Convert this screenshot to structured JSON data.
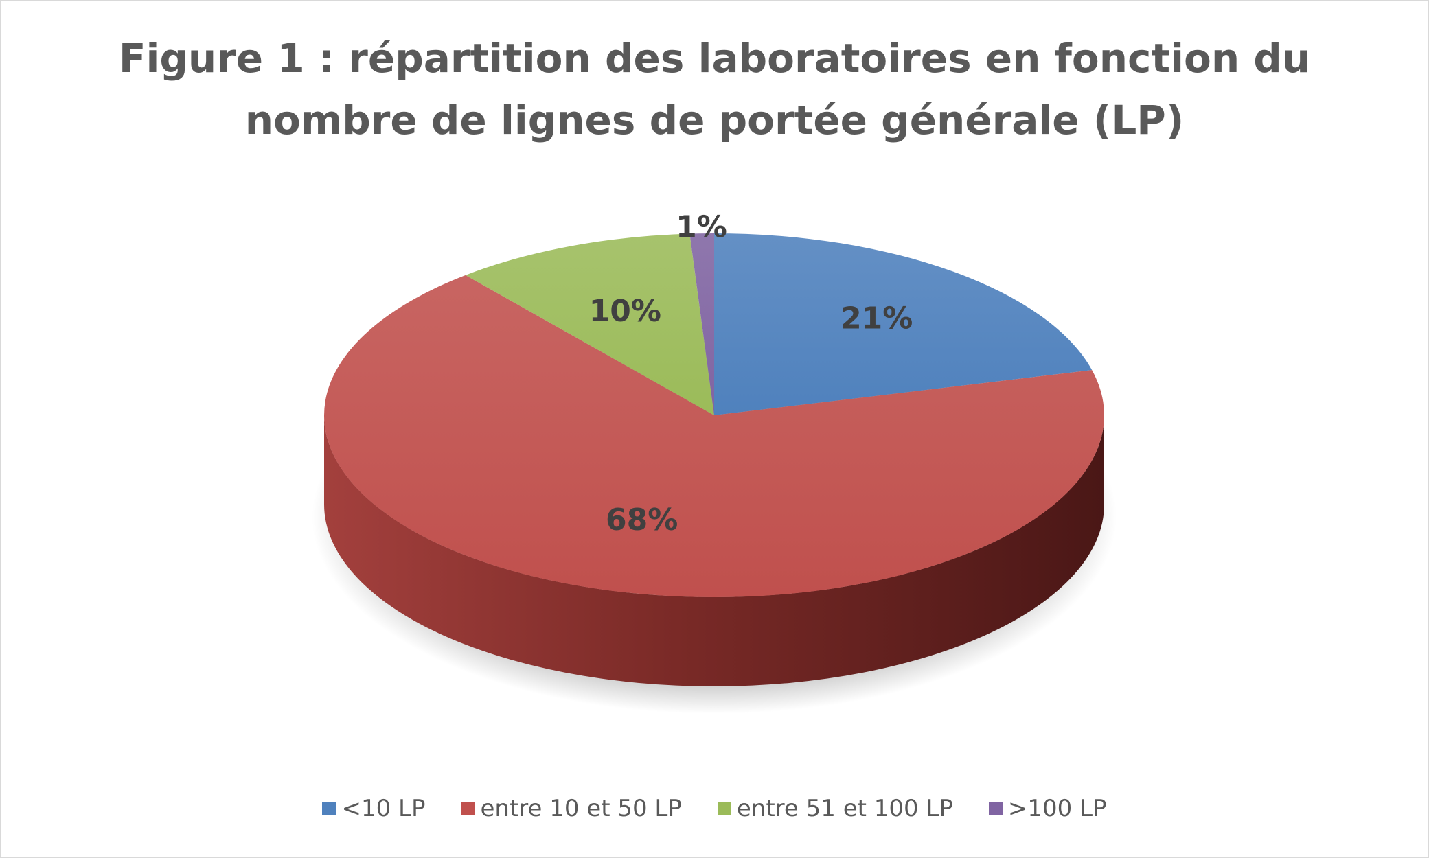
{
  "chart_data": {
    "type": "pie",
    "title_lines": [
      "Figure 1 : répartition des laboratoires en fonction du",
      "nombre de lignes de portée générale (LP)"
    ],
    "categories": [
      "<10 LP",
      "entre 10 et 50 LP",
      "entre 51 et 100 LP",
      ">100 LP"
    ],
    "values": [
      21,
      68,
      10,
      1
    ],
    "data_labels": [
      "21%",
      "68%",
      "10%",
      "1%"
    ],
    "colors": [
      "#4F81BD",
      "#C0504D",
      "#9BBB59",
      "#8064A2"
    ],
    "style": "3d",
    "legend_position": "bottom"
  }
}
